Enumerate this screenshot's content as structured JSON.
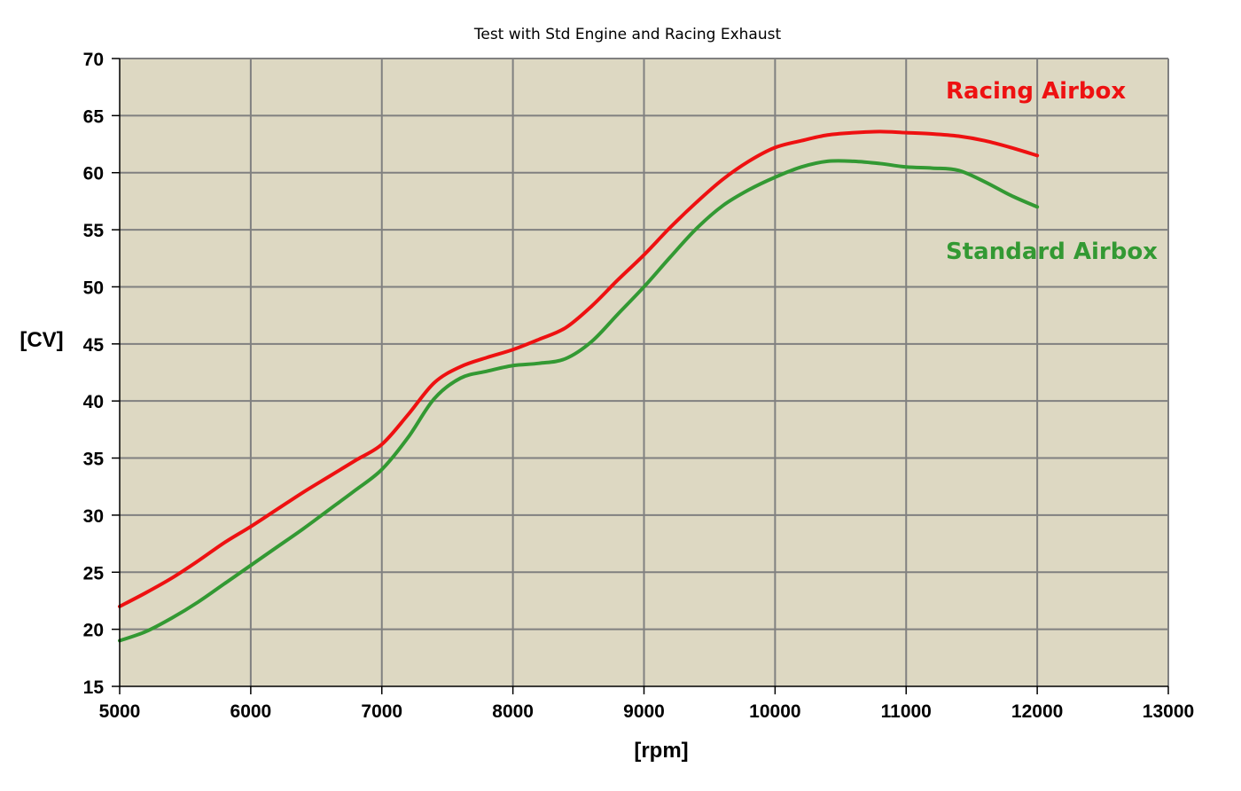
{
  "chart_data": {
    "type": "line",
    "title": "Test with Std Engine and Racing Exhaust",
    "xlabel": "[rpm]",
    "ylabel": "[CV]",
    "xlim": [
      5000,
      13000
    ],
    "ylim": [
      15,
      70
    ],
    "xticks": [
      5000,
      6000,
      7000,
      8000,
      9000,
      10000,
      11000,
      12000,
      13000
    ],
    "yticks": [
      15,
      20,
      25,
      30,
      35,
      40,
      45,
      50,
      55,
      60,
      65,
      70
    ],
    "grid": true,
    "plot_background": "#ddd8c2",
    "grid_color": "#808080",
    "legend": "inline labels near curves (top-right)",
    "series": [
      {
        "name": "Racing Airbox",
        "color": "#ee1111",
        "x": [
          5000,
          5200,
          5400,
          5600,
          5800,
          6000,
          6200,
          6400,
          6600,
          6800,
          7000,
          7200,
          7400,
          7600,
          7800,
          8000,
          8200,
          8400,
          8600,
          8800,
          9000,
          9200,
          9400,
          9600,
          9800,
          10000,
          10200,
          10400,
          10600,
          10800,
          11000,
          11200,
          11400,
          11600,
          11800,
          12000
        ],
        "y": [
          22,
          23.2,
          24.5,
          26,
          27.6,
          29,
          30.5,
          32,
          33.4,
          34.8,
          36.2,
          38.8,
          41.6,
          43,
          43.8,
          44.5,
          45.4,
          46.4,
          48.3,
          50.6,
          52.8,
          55.2,
          57.4,
          59.4,
          61,
          62.2,
          62.8,
          63.3,
          63.5,
          63.6,
          63.5,
          63.4,
          63.2,
          62.8,
          62.2,
          61.5
        ]
      },
      {
        "name": "Standard Airbox",
        "color": "#339933",
        "x": [
          5000,
          5200,
          5400,
          5600,
          5800,
          6000,
          6200,
          6400,
          6600,
          6800,
          7000,
          7200,
          7400,
          7600,
          7800,
          8000,
          8200,
          8400,
          8600,
          8800,
          9000,
          9200,
          9400,
          9600,
          9800,
          10000,
          10200,
          10400,
          10600,
          10800,
          11000,
          11200,
          11400,
          11600,
          11800,
          12000
        ],
        "y": [
          19,
          19.8,
          21,
          22.4,
          24,
          25.6,
          27.2,
          28.8,
          30.5,
          32.2,
          34,
          36.8,
          40.2,
          42,
          42.6,
          43.1,
          43.3,
          43.7,
          45.2,
          47.6,
          50,
          52.6,
          55.1,
          57.1,
          58.5,
          59.6,
          60.5,
          61,
          61,
          60.8,
          60.5,
          60.4,
          60.2,
          59.2,
          58,
          57
        ]
      }
    ]
  }
}
